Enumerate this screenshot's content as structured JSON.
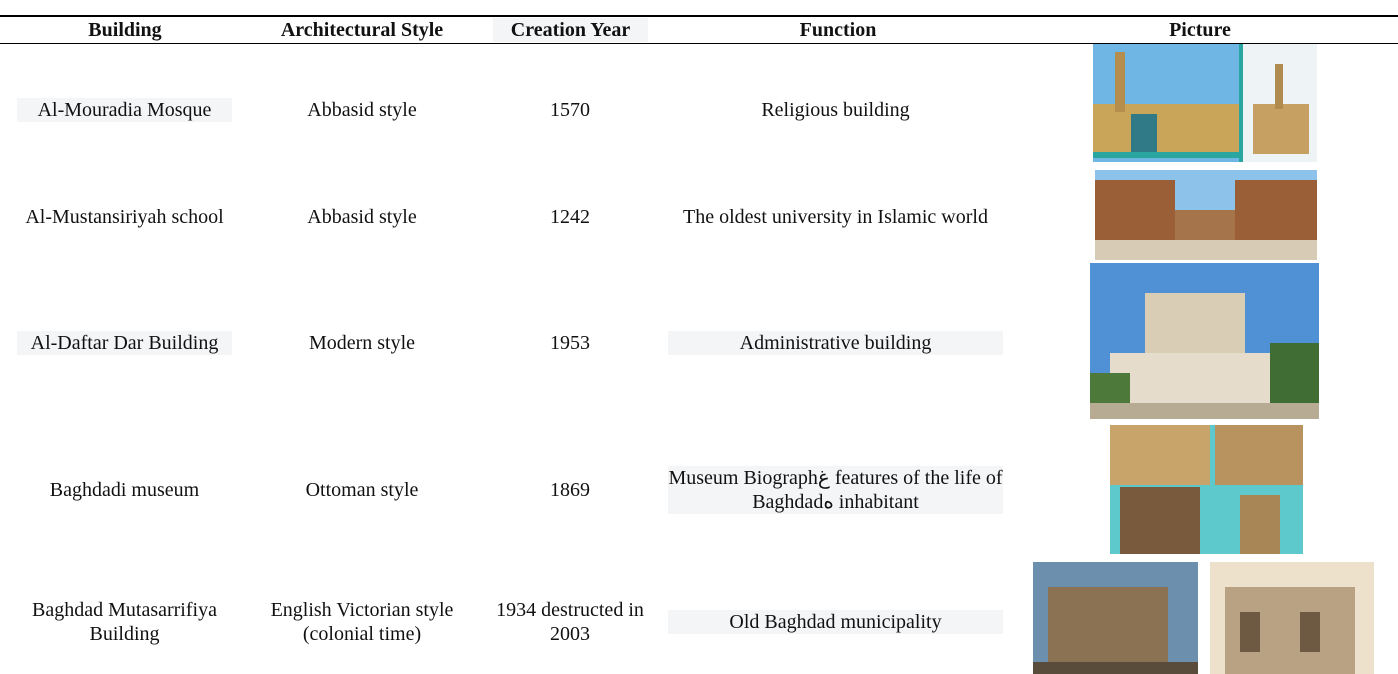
{
  "table": {
    "headers": [
      "Building",
      "Architectural Style",
      "Creation Year",
      "Function",
      "Picture"
    ],
    "rows": [
      [
        "Al-Mouradia Mosque",
        "Abbasid style",
        "1570",
        "Religious building"
      ],
      [
        "Al-Mustansiriyah school",
        "Abbasid style",
        "1242",
        "The oldest university in Islamic world"
      ],
      [
        "Al-Daftar Dar Building",
        "Modern style",
        "1953",
        "Administrative building"
      ],
      [
        "Baghdadi museum",
        "Ottoman style",
        "1869",
        "Museum Biographغ features of the life of Baghdadه inhabitant"
      ],
      [
        "Baghdad Mutasarrifiya Building",
        "English Victorian style (colonial time)",
        "1934 destructed in 2003",
        "Old Baghdad municipality"
      ]
    ]
  }
}
